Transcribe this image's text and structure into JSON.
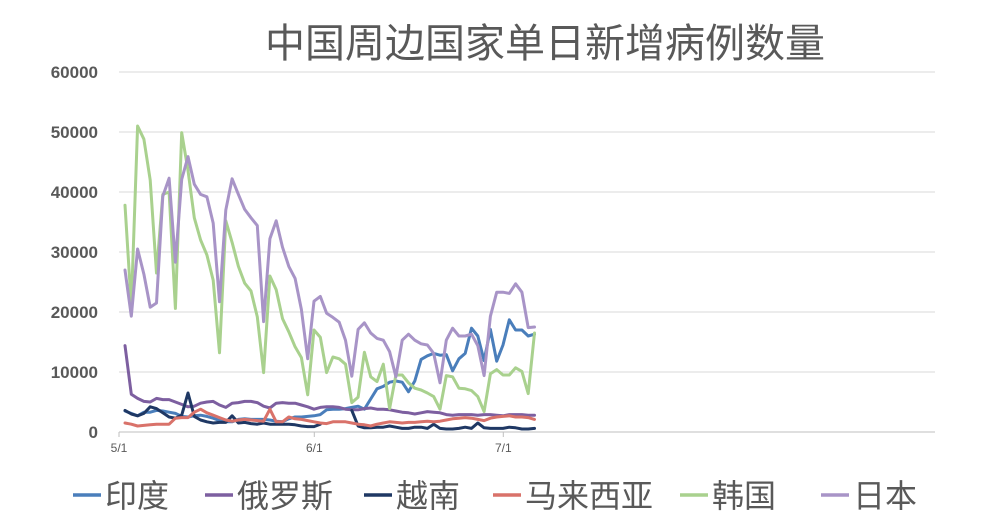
{
  "chart_data": {
    "type": "line",
    "title": "中国周边国家单日新增病例数量",
    "xlabel": "",
    "ylabel": "",
    "ylim": [
      0,
      60000
    ],
    "yticks": [
      "0",
      "10000",
      "20000",
      "30000",
      "40000",
      "50000",
      "60000"
    ],
    "x_tick_labels": [
      {
        "day": 0,
        "label": "5/1"
      },
      {
        "day": 31,
        "label": "6/1"
      },
      {
        "day": 61,
        "label": "7/1"
      }
    ],
    "grid": true,
    "legend_position": "bottom",
    "x_start": "5/1",
    "series": [
      {
        "name": "印度",
        "color": "#4a7ebb",
        "values": [
          3500,
          3100,
          2700,
          3300,
          3300,
          3600,
          3500,
          3300,
          3100,
          2600,
          2500,
          2700,
          2800,
          2600,
          2300,
          1900,
          1700,
          1700,
          2100,
          2200,
          2100,
          2100,
          2100,
          2000,
          1800,
          1700,
          2200,
          2500,
          2500,
          2600,
          2700,
          2900,
          3700,
          3800,
          3800,
          3900,
          4100,
          4300,
          3800,
          5500,
          7200,
          7600,
          8300,
          8500,
          8300,
          6700,
          8500,
          12100,
          12700,
          13100,
          12800,
          12900,
          10200,
          12200,
          13100,
          17300,
          16000,
          11900,
          17100,
          11800,
          14500,
          18700,
          17000,
          17000,
          16000,
          16300
        ]
      },
      {
        "name": "俄罗斯",
        "color": "#7d5fa0",
        "values": [
          14400,
          6300,
          5600,
          5100,
          5000,
          5600,
          5400,
          5400,
          5000,
          4600,
          4200,
          4300,
          4800,
          5000,
          5100,
          4500,
          4100,
          4800,
          4900,
          5100,
          5100,
          4900,
          4300,
          4000,
          4800,
          4900,
          4800,
          4800,
          4500,
          4200,
          3800,
          4100,
          4200,
          4200,
          4100,
          3800,
          3700,
          3700,
          3900,
          4000,
          3800,
          3800,
          3700,
          3500,
          3300,
          3200,
          3000,
          3200,
          3400,
          3300,
          3200,
          2900,
          2800,
          2900,
          2900,
          2900,
          2800,
          2900,
          2900,
          2800,
          2700,
          2900,
          2900,
          2900,
          2800,
          2800
        ]
      },
      {
        "name": "越南",
        "color": "#1f3864",
        "values": [
          3600,
          3000,
          2700,
          3100,
          4200,
          3900,
          3200,
          2500,
          2300,
          2800,
          6500,
          2600,
          2000,
          1700,
          1500,
          1600,
          1600,
          2700,
          1500,
          1600,
          1400,
          1300,
          1500,
          1300,
          1300,
          1300,
          1300,
          1200,
          1000,
          900,
          900,
          1300,
          null,
          null,
          null,
          null,
          3600,
          1000,
          700,
          700,
          800,
          800,
          1000,
          800,
          600,
          600,
          800,
          800,
          600,
          1300,
          600,
          500,
          500,
          600,
          800,
          600,
          1500,
          700,
          600,
          600,
          600,
          800,
          700,
          500,
          500,
          600
        ]
      },
      {
        "name": "马来西亚",
        "color": "#d9726a",
        "values": [
          1500,
          1300,
          1000,
          1100,
          1200,
          1300,
          1300,
          1300,
          2300,
          2400,
          2400,
          3300,
          3800,
          3200,
          2800,
          2400,
          2000,
          1800,
          2000,
          2100,
          2000,
          1900,
          1800,
          3800,
          1700,
          1700,
          2500,
          2200,
          2100,
          1900,
          1700,
          1500,
          1400,
          1700,
          1700,
          1700,
          1500,
          1300,
          1200,
          1000,
          1300,
          1500,
          1700,
          1600,
          1500,
          1600,
          1600,
          1700,
          1800,
          1700,
          1800,
          2000,
          2200,
          2300,
          2400,
          2300,
          2100,
          1900,
          2300,
          2500,
          2600,
          2700,
          2500,
          2500,
          2400,
          2100
        ]
      },
      {
        "name": "韩国",
        "color": "#a9d18e",
        "values": [
          37800,
          21000,
          51000,
          48800,
          42000,
          26500,
          39600,
          40000,
          20600,
          49900,
          43600,
          35700,
          32000,
          29500,
          25300,
          13200,
          35200,
          31600,
          27600,
          24800,
          23500,
          19200,
          9900,
          26000,
          23700,
          18900,
          16700,
          14200,
          12400,
          6200,
          17000,
          15800,
          9900,
          12500,
          12200,
          11300,
          4900,
          5800,
          13300,
          9200,
          8400,
          11300,
          3900,
          9500,
          9500,
          8200,
          7300,
          7000,
          6500,
          5900,
          3800,
          9400,
          9200,
          7300,
          7200,
          6900,
          5900,
          3400,
          9700,
          10400,
          9500,
          9500,
          10700,
          10100,
          6400,
          16500
        ]
      },
      {
        "name": "日本",
        "color": "#a894c7",
        "values": [
          27000,
          19300,
          30500,
          26300,
          20800,
          21500,
          39300,
          42300,
          28300,
          42100,
          45900,
          41300,
          39600,
          39200,
          34800,
          21700,
          37000,
          42200,
          39600,
          37100,
          35700,
          34400,
          18400,
          32200,
          35200,
          30800,
          27600,
          25600,
          20400,
          12200,
          21800,
          22600,
          19800,
          19100,
          18300,
          15300,
          9300,
          17100,
          18200,
          16500,
          15600,
          15300,
          13400,
          9200,
          15300,
          16300,
          15300,
          14700,
          14500,
          13100,
          8200,
          15300,
          17300,
          16000,
          16000,
          16300,
          14400,
          9400,
          19300,
          23300,
          23300,
          23100,
          24700,
          23300,
          17400,
          17500
        ]
      }
    ]
  }
}
